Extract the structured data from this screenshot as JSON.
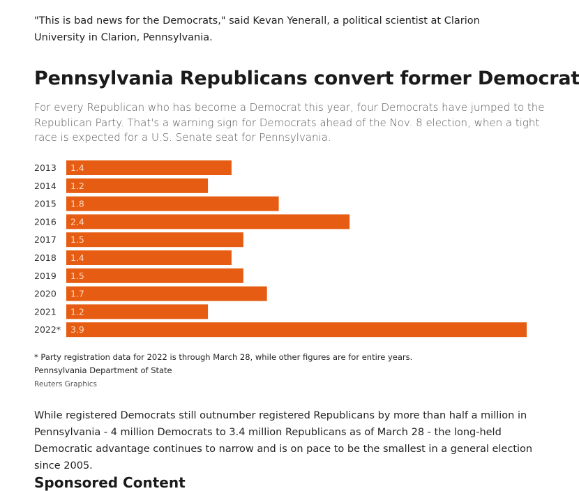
{
  "article": {
    "quote": "\"This is bad news for the Democrats,\" said Kevan Yenerall, a political scientist at Clarion University in Clarion, Pennsylvania.",
    "body_paragraph": "While registered Democrats still outnumber registered Republicans by more than half a million in Pennsylvania - 4 million Democrats to 3.4 million Republicans as of March 28 - the long-held Democratic advantage continues to narrow and is on pace to be the smallest in a general election since 2005.",
    "sponsored_heading": "Sponsored Content"
  },
  "figure": {
    "footnote": "* Party registration data for 2022 is through March 28, while other figures are for entire years.",
    "source": "Pennsylvania Department of State",
    "credit": "Reuters Graphics"
  },
  "chart_data": {
    "type": "bar",
    "orientation": "horizontal",
    "title": "Pennsylvania Republicans convert former Democrats",
    "subtitle": "For every Republican who has become a Democrat this year, four Democrats have jumped to the Republican Party. That's a warning sign for Democrats ahead of the Nov. 8 election, when a tight race is expected for a U.S. Senate seat for Pennsylvania.",
    "categories": [
      "2013",
      "2014",
      "2015",
      "2016",
      "2017",
      "2018",
      "2019",
      "2020",
      "2021",
      "2022*"
    ],
    "values": [
      1.4,
      1.2,
      1.8,
      2.4,
      1.5,
      1.4,
      1.5,
      1.7,
      1.2,
      3.9
    ],
    "value_labels": [
      "1.4",
      "1.2",
      "1.8",
      "2.4",
      "1.5",
      "1.4",
      "1.5",
      "1.7",
      "1.2",
      "3.9"
    ],
    "xlim": [
      0,
      3.9
    ],
    "xlabel": "",
    "ylabel": "",
    "grid": false,
    "bar_color": "#e55c12",
    "label_color": "#ffd9c2"
  }
}
